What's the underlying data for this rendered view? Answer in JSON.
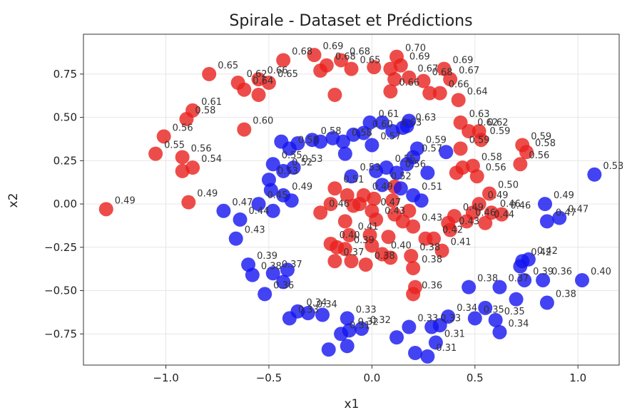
{
  "chart_data": {
    "type": "scatter",
    "title": "Spirale - Dataset et Prédictions",
    "xlabel": "x1",
    "ylabel": "x2",
    "xlim": [
      -1.4,
      1.2
    ],
    "ylim": [
      -0.93,
      0.98
    ],
    "xticks": [
      "−1.0",
      "−0.5",
      "0.0",
      "0.5",
      "1.0"
    ],
    "xtick_values": [
      -1.0,
      -0.5,
      0.0,
      0.5,
      1.0
    ],
    "yticks": [
      "0.75",
      "0.50",
      "0.25",
      "0.00",
      "−0.25",
      "−0.50",
      "−0.75"
    ],
    "ytick_values": [
      0.75,
      0.5,
      0.25,
      0.0,
      -0.25,
      -0.5,
      -0.75
    ],
    "grid": true,
    "legend": "none",
    "colors": {
      "class_0": "#e8211d",
      "class_1": "#1414f0"
    },
    "series": [
      {
        "color": "#e8211d",
        "points": [
          [
            -1.29,
            -0.03,
            "0.49"
          ],
          [
            -0.89,
            0.01,
            "0.49"
          ],
          [
            -1.05,
            0.29,
            "0.55"
          ],
          [
            -0.92,
            0.19,
            ""
          ],
          [
            -0.87,
            0.21,
            "0.54"
          ],
          [
            -0.92,
            0.27,
            "0.56"
          ],
          [
            -1.01,
            0.39,
            "0.56"
          ],
          [
            -0.9,
            0.49,
            "0.58"
          ],
          [
            -0.87,
            0.54,
            "0.61"
          ],
          [
            -0.62,
            0.43,
            "0.60"
          ],
          [
            -0.79,
            0.75,
            "0.65"
          ],
          [
            -0.65,
            0.7,
            "0.62"
          ],
          [
            -0.62,
            0.66,
            "0.64"
          ],
          [
            -0.55,
            0.63,
            ""
          ],
          [
            -0.55,
            0.72,
            "0.66"
          ],
          [
            -0.5,
            0.7,
            "0.65"
          ],
          [
            -0.43,
            0.83,
            "0.68"
          ],
          [
            -0.28,
            0.86,
            "0.69"
          ],
          [
            -0.25,
            0.77,
            ""
          ],
          [
            -0.22,
            0.8,
            "0.68"
          ],
          [
            -0.15,
            0.83,
            "0.68"
          ],
          [
            -0.1,
            0.78,
            "0.65"
          ],
          [
            -0.18,
            0.63,
            ""
          ],
          [
            0.01,
            0.79,
            ""
          ],
          [
            0.09,
            0.78,
            ""
          ],
          [
            0.12,
            0.85,
            "0.70"
          ],
          [
            0.14,
            0.8,
            "0.69"
          ],
          [
            0.11,
            0.72,
            ""
          ],
          [
            0.09,
            0.65,
            "0.66"
          ],
          [
            0.18,
            0.73,
            "0.67"
          ],
          [
            0.25,
            0.71,
            "0.68"
          ],
          [
            0.28,
            0.64,
            ""
          ],
          [
            0.33,
            0.64,
            "0.66"
          ],
          [
            0.35,
            0.78,
            "0.69"
          ],
          [
            0.38,
            0.72,
            "0.67"
          ],
          [
            0.42,
            0.6,
            "0.64"
          ],
          [
            0.43,
            0.47,
            "0.63"
          ],
          [
            0.47,
            0.42,
            "0.62"
          ],
          [
            0.52,
            0.42,
            "0.62"
          ],
          [
            0.53,
            0.37,
            "0.59"
          ],
          [
            0.43,
            0.32,
            "0.59"
          ],
          [
            0.49,
            0.22,
            "0.58"
          ],
          [
            0.44,
            0.21,
            ""
          ],
          [
            0.41,
            0.18,
            ""
          ],
          [
            0.51,
            0.16,
            "0.56"
          ],
          [
            0.73,
            0.34,
            "0.59"
          ],
          [
            0.75,
            0.3,
            "0.58"
          ],
          [
            0.72,
            0.23,
            "0.56"
          ],
          [
            0.57,
            0.06,
            "0.50"
          ],
          [
            0.52,
            0.0,
            "0.49"
          ],
          [
            0.58,
            -0.05,
            "0.46"
          ],
          [
            0.63,
            -0.06,
            "0.46"
          ],
          [
            0.49,
            -0.05,
            ""
          ],
          [
            0.46,
            -0.1,
            "0.46"
          ],
          [
            0.4,
            -0.07,
            "0.49"
          ],
          [
            0.37,
            -0.11,
            ""
          ],
          [
            0.38,
            -0.15,
            "0.43"
          ],
          [
            0.55,
            -0.11,
            "0.44"
          ],
          [
            0.3,
            -0.2,
            "0.42"
          ],
          [
            0.34,
            -0.27,
            "0.41"
          ],
          [
            0.26,
            -0.2,
            ""
          ],
          [
            0.2,
            -0.13,
            "0.43"
          ],
          [
            0.19,
            -0.3,
            "0.38"
          ],
          [
            0.2,
            -0.37,
            "0.38"
          ],
          [
            0.21,
            -0.48,
            ""
          ],
          [
            0.2,
            -0.52,
            "0.36"
          ],
          [
            0.09,
            -0.31,
            ""
          ],
          [
            0.05,
            -0.29,
            "0.40"
          ],
          [
            0.0,
            -0.24,
            ""
          ],
          [
            -0.03,
            -0.35,
            "0.38"
          ],
          [
            -0.1,
            -0.33,
            ""
          ],
          [
            -0.13,
            -0.26,
            "0.39"
          ],
          [
            -0.11,
            -0.18,
            "0.41"
          ],
          [
            -0.13,
            -0.1,
            ""
          ],
          [
            -0.17,
            -0.25,
            ""
          ],
          [
            -0.18,
            -0.33,
            "0.37"
          ],
          [
            -0.2,
            -0.23,
            "0.40"
          ],
          [
            -0.25,
            -0.05,
            "0.46"
          ],
          [
            -0.2,
            -0.0,
            ""
          ],
          [
            -0.18,
            0.09,
            "0.51"
          ],
          [
            -0.12,
            0.05,
            ""
          ],
          [
            -0.09,
            -0.01,
            ""
          ],
          [
            -0.06,
            0.0,
            ""
          ],
          [
            -0.04,
            0.05,
            "0.49"
          ],
          [
            0.0,
            -0.04,
            "0.47"
          ],
          [
            0.01,
            0.03,
            ""
          ],
          [
            0.02,
            -0.09,
            "0.43"
          ],
          [
            0.1,
            0.02,
            ""
          ],
          [
            0.11,
            -0.06,
            ""
          ],
          [
            0.18,
            -0.04,
            ""
          ],
          [
            0.11,
            0.1,
            ""
          ],
          [
            -0.01,
            -0.18,
            ""
          ],
          [
            0.08,
            -0.19,
            ""
          ],
          [
            0.15,
            -0.1,
            ""
          ]
        ]
      },
      {
        "color": "#1414f0",
        "points": [
          [
            -0.72,
            -0.04,
            "0.47"
          ],
          [
            -0.64,
            -0.09,
            "0.44"
          ],
          [
            -0.66,
            -0.2,
            "0.43"
          ],
          [
            -0.55,
            0.0,
            "0.45"
          ],
          [
            -0.48,
            -0.04,
            ""
          ],
          [
            -0.39,
            0.02,
            ""
          ],
          [
            -0.43,
            0.05,
            "0.49"
          ],
          [
            -0.49,
            0.08,
            ""
          ],
          [
            -0.5,
            0.14,
            "0.53"
          ],
          [
            -0.48,
            0.23,
            "0.55"
          ],
          [
            -0.43,
            0.19,
            "0.52"
          ],
          [
            -0.38,
            0.21,
            "0.53"
          ],
          [
            -0.4,
            0.32,
            "0.58"
          ],
          [
            -0.44,
            0.36,
            ""
          ],
          [
            -0.36,
            0.35,
            ""
          ],
          [
            -0.29,
            0.37,
            "0.58"
          ],
          [
            -0.25,
            0.36,
            ""
          ],
          [
            -0.19,
            0.38,
            ""
          ],
          [
            -0.14,
            0.36,
            "0.58"
          ],
          [
            -0.09,
            0.4,
            ""
          ],
          [
            -0.04,
            0.41,
            "0.60"
          ],
          [
            -0.01,
            0.47,
            "0.61"
          ],
          [
            0.05,
            0.47,
            ""
          ],
          [
            0.1,
            0.42,
            "0.63"
          ],
          [
            0.15,
            0.44,
            ""
          ],
          [
            0.17,
            0.45,
            "0.63"
          ],
          [
            0.18,
            0.48,
            ""
          ],
          [
            0.22,
            0.32,
            "0.59"
          ],
          [
            0.2,
            0.27,
            "0.57"
          ],
          [
            0.17,
            0.23,
            ""
          ],
          [
            0.12,
            0.18,
            "0.56"
          ],
          [
            0.07,
            0.21,
            "0.55"
          ],
          [
            0.02,
            0.19,
            ""
          ],
          [
            0.0,
            0.34,
            "0.57"
          ],
          [
            -0.13,
            0.29,
            ""
          ],
          [
            -0.1,
            0.16,
            "0.53"
          ],
          [
            0.05,
            0.11,
            "0.52"
          ],
          [
            0.14,
            0.09,
            ""
          ],
          [
            0.2,
            0.05,
            "0.51"
          ],
          [
            0.24,
            0.02,
            ""
          ],
          [
            -0.6,
            -0.35,
            "0.39"
          ],
          [
            -0.58,
            -0.41,
            "0.38"
          ],
          [
            -0.48,
            -0.4,
            "0.37"
          ],
          [
            -0.52,
            -0.52,
            "0.36"
          ],
          [
            -0.41,
            -0.38,
            ""
          ],
          [
            -0.43,
            -0.45,
            ""
          ],
          [
            -0.36,
            -0.62,
            "0.34"
          ],
          [
            -0.4,
            -0.66,
            "0.33"
          ],
          [
            -0.31,
            -0.63,
            "0.34"
          ],
          [
            -0.24,
            -0.64,
            ""
          ],
          [
            -0.12,
            -0.66,
            "0.33"
          ],
          [
            -0.11,
            -0.73,
            "0.32"
          ],
          [
            -0.15,
            -0.75,
            "0.31"
          ],
          [
            -0.21,
            -0.84,
            ""
          ],
          [
            -0.12,
            -0.82,
            ""
          ],
          [
            -0.05,
            -0.72,
            "0.32"
          ],
          [
            0.12,
            -0.77,
            ""
          ],
          [
            0.18,
            -0.71,
            "0.33"
          ],
          [
            0.29,
            -0.71,
            "0.33"
          ],
          [
            0.37,
            -0.65,
            "0.34"
          ],
          [
            0.33,
            -0.7,
            ""
          ],
          [
            0.31,
            -0.8,
            "0.31"
          ],
          [
            0.21,
            -0.86,
            ""
          ],
          [
            0.27,
            -0.88,
            "0.31"
          ],
          [
            0.5,
            -0.66,
            "0.35"
          ],
          [
            0.55,
            -0.6,
            ""
          ],
          [
            0.6,
            -0.67,
            "0.35"
          ],
          [
            0.62,
            -0.74,
            "0.34"
          ],
          [
            0.47,
            -0.48,
            "0.38"
          ],
          [
            0.62,
            -0.48,
            "0.37"
          ],
          [
            0.7,
            -0.55,
            ""
          ],
          [
            0.74,
            -0.44,
            "0.39"
          ],
          [
            0.83,
            -0.44,
            "0.36"
          ],
          [
            0.85,
            -0.57,
            "0.38"
          ],
          [
            0.73,
            -0.33,
            "0.42"
          ],
          [
            0.72,
            -0.36,
            ""
          ],
          [
            0.76,
            -0.32,
            "0.42"
          ],
          [
            1.02,
            -0.44,
            "0.40"
          ],
          [
            0.85,
            -0.1,
            "0.47"
          ],
          [
            0.91,
            -0.08,
            "0.47"
          ],
          [
            0.84,
            0.0,
            "0.49"
          ],
          [
            1.08,
            0.17,
            "0.53"
          ],
          [
            0.36,
            0.3,
            ""
          ],
          [
            0.27,
            0.18,
            ""
          ]
        ]
      }
    ]
  }
}
